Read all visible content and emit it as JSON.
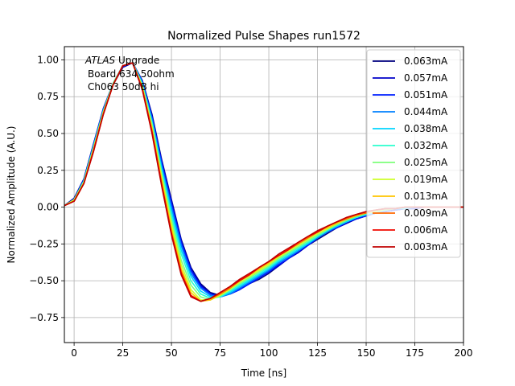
{
  "chart_data": {
    "type": "line",
    "title": "Normalized Pulse Shapes run1572",
    "xlabel": "Time [ns]",
    "ylabel": "Normalized Amplitude (A.U.)",
    "xlim": [
      -5,
      200
    ],
    "ylim": [
      -0.92,
      1.09
    ],
    "xticks": [
      0,
      25,
      50,
      75,
      100,
      125,
      150,
      175,
      200
    ],
    "yticks": [
      -0.75,
      -0.5,
      -0.25,
      0.0,
      0.25,
      0.5,
      0.75,
      1.0
    ],
    "xtick_labels": [
      "0",
      "25",
      "50",
      "75",
      "100",
      "125",
      "150",
      "175",
      "200"
    ],
    "ytick_labels": [
      "−0.75",
      "−0.50",
      "−0.25",
      "0.00",
      "0.25",
      "0.50",
      "0.75",
      "1.00"
    ],
    "grid": true,
    "legend_position": "top-right",
    "annotation": {
      "line1_italic": "ATLAS",
      "line1_rest": " Upgrade",
      "line2": "Board 634 50ohm",
      "line3": "Ch063 50dB hi"
    },
    "series": [
      {
        "name": "0.063mA",
        "color": "#00007f",
        "y": [
          0.01,
          0.06,
          0.19,
          0.43,
          0.66,
          0.83,
          0.95,
          0.98,
          0.86,
          0.63,
          0.32,
          0.05,
          -0.22,
          -0.41,
          -0.52,
          -0.58,
          -0.6,
          -0.59,
          -0.56,
          -0.52,
          -0.49,
          -0.45,
          -0.4,
          -0.35,
          -0.31,
          -0.26,
          -0.22,
          -0.18,
          -0.14,
          -0.11,
          -0.08,
          -0.06,
          -0.04,
          -0.03,
          -0.02,
          -0.01,
          -0.01,
          0.0,
          0.0,
          0.0,
          0.0,
          0.0
        ]
      },
      {
        "name": "0.057mA",
        "color": "#0000c8",
        "y": [
          0.01,
          0.06,
          0.19,
          0.43,
          0.67,
          0.84,
          0.95,
          0.98,
          0.86,
          0.62,
          0.31,
          0.04,
          -0.23,
          -0.42,
          -0.53,
          -0.59,
          -0.6,
          -0.59,
          -0.56,
          -0.52,
          -0.48,
          -0.44,
          -0.4,
          -0.35,
          -0.31,
          -0.26,
          -0.21,
          -0.17,
          -0.14,
          -0.11,
          -0.08,
          -0.06,
          -0.04,
          -0.03,
          -0.02,
          -0.01,
          -0.01,
          0.0,
          0.0,
          0.0,
          0.0,
          0.0
        ]
      },
      {
        "name": "0.051mA",
        "color": "#0020ff",
        "y": [
          0.01,
          0.05,
          0.18,
          0.42,
          0.66,
          0.84,
          0.96,
          0.98,
          0.85,
          0.61,
          0.3,
          0.02,
          -0.24,
          -0.43,
          -0.54,
          -0.59,
          -0.61,
          -0.59,
          -0.56,
          -0.52,
          -0.48,
          -0.44,
          -0.39,
          -0.35,
          -0.3,
          -0.26,
          -0.21,
          -0.17,
          -0.14,
          -0.1,
          -0.08,
          -0.06,
          -0.04,
          -0.03,
          -0.02,
          -0.01,
          -0.01,
          0.0,
          0.0,
          0.0,
          0.0,
          0.0
        ]
      },
      {
        "name": "0.044mA",
        "color": "#0080ff",
        "y": [
          0.01,
          0.05,
          0.18,
          0.42,
          0.66,
          0.84,
          0.96,
          0.98,
          0.85,
          0.6,
          0.28,
          0.0,
          -0.26,
          -0.45,
          -0.55,
          -0.6,
          -0.61,
          -0.59,
          -0.55,
          -0.51,
          -0.47,
          -0.43,
          -0.38,
          -0.34,
          -0.3,
          -0.25,
          -0.21,
          -0.17,
          -0.13,
          -0.1,
          -0.07,
          -0.05,
          -0.04,
          -0.02,
          -0.01,
          -0.01,
          0.0,
          0.0,
          0.0,
          0.0,
          0.0,
          0.0
        ]
      },
      {
        "name": "0.038mA",
        "color": "#00d4ff",
        "y": [
          0.01,
          0.05,
          0.18,
          0.41,
          0.65,
          0.84,
          0.96,
          0.98,
          0.84,
          0.58,
          0.26,
          -0.03,
          -0.29,
          -0.47,
          -0.57,
          -0.61,
          -0.61,
          -0.58,
          -0.54,
          -0.5,
          -0.46,
          -0.42,
          -0.37,
          -0.33,
          -0.29,
          -0.25,
          -0.2,
          -0.16,
          -0.13,
          -0.1,
          -0.07,
          -0.05,
          -0.03,
          -0.02,
          -0.01,
          -0.01,
          0.0,
          0.0,
          0.0,
          0.0,
          0.0,
          0.0
        ]
      },
      {
        "name": "0.032mA",
        "color": "#29ffce",
        "y": [
          0.01,
          0.05,
          0.17,
          0.41,
          0.65,
          0.84,
          0.96,
          0.98,
          0.83,
          0.57,
          0.24,
          -0.06,
          -0.32,
          -0.5,
          -0.59,
          -0.62,
          -0.61,
          -0.57,
          -0.53,
          -0.49,
          -0.45,
          -0.41,
          -0.36,
          -0.32,
          -0.28,
          -0.24,
          -0.2,
          -0.16,
          -0.12,
          -0.09,
          -0.07,
          -0.05,
          -0.03,
          -0.02,
          -0.01,
          0.0,
          0.0,
          0.0,
          0.0,
          0.0,
          0.0,
          0.0
        ]
      },
      {
        "name": "0.025mA",
        "color": "#7dff7a",
        "y": [
          0.01,
          0.05,
          0.17,
          0.4,
          0.65,
          0.84,
          0.96,
          0.98,
          0.83,
          0.56,
          0.22,
          -0.09,
          -0.36,
          -0.53,
          -0.61,
          -0.63,
          -0.6,
          -0.56,
          -0.52,
          -0.48,
          -0.44,
          -0.4,
          -0.35,
          -0.31,
          -0.27,
          -0.23,
          -0.19,
          -0.15,
          -0.12,
          -0.09,
          -0.06,
          -0.04,
          -0.03,
          -0.02,
          -0.01,
          0.0,
          0.0,
          0.0,
          0.0,
          0.0,
          0.0,
          0.0
        ]
      },
      {
        "name": "0.019mA",
        "color": "#ceff29",
        "y": [
          0.01,
          0.05,
          0.17,
          0.4,
          0.64,
          0.83,
          0.96,
          0.98,
          0.82,
          0.54,
          0.2,
          -0.12,
          -0.39,
          -0.56,
          -0.63,
          -0.63,
          -0.6,
          -0.56,
          -0.51,
          -0.47,
          -0.43,
          -0.39,
          -0.34,
          -0.3,
          -0.26,
          -0.22,
          -0.18,
          -0.15,
          -0.11,
          -0.08,
          -0.06,
          -0.04,
          -0.03,
          -0.01,
          -0.01,
          0.0,
          0.0,
          0.0,
          0.0,
          0.0,
          0.0,
          0.0
        ]
      },
      {
        "name": "0.013mA",
        "color": "#ffc400",
        "y": [
          0.01,
          0.04,
          0.16,
          0.39,
          0.64,
          0.83,
          0.96,
          0.98,
          0.81,
          0.53,
          0.18,
          -0.15,
          -0.42,
          -0.58,
          -0.64,
          -0.63,
          -0.59,
          -0.55,
          -0.5,
          -0.46,
          -0.42,
          -0.38,
          -0.33,
          -0.29,
          -0.25,
          -0.21,
          -0.17,
          -0.14,
          -0.11,
          -0.08,
          -0.06,
          -0.04,
          -0.02,
          -0.01,
          -0.01,
          0.0,
          0.0,
          0.0,
          0.0,
          0.0,
          0.0,
          0.0
        ]
      },
      {
        "name": "0.009mA",
        "color": "#ff6800",
        "y": [
          0.01,
          0.04,
          0.16,
          0.39,
          0.63,
          0.83,
          0.96,
          0.98,
          0.81,
          0.52,
          0.16,
          -0.17,
          -0.44,
          -0.6,
          -0.64,
          -0.62,
          -0.59,
          -0.55,
          -0.5,
          -0.46,
          -0.41,
          -0.37,
          -0.33,
          -0.29,
          -0.25,
          -0.21,
          -0.17,
          -0.13,
          -0.1,
          -0.08,
          -0.05,
          -0.04,
          -0.02,
          -0.01,
          -0.01,
          0.0,
          0.0,
          0.0,
          0.0,
          0.0,
          0.0,
          0.0
        ]
      },
      {
        "name": "0.006mA",
        "color": "#f10800",
        "y": [
          0.01,
          0.04,
          0.16,
          0.38,
          0.63,
          0.83,
          0.96,
          0.98,
          0.8,
          0.51,
          0.15,
          -0.18,
          -0.45,
          -0.6,
          -0.64,
          -0.62,
          -0.58,
          -0.54,
          -0.5,
          -0.46,
          -0.41,
          -0.37,
          -0.33,
          -0.29,
          -0.24,
          -0.2,
          -0.17,
          -0.13,
          -0.1,
          -0.07,
          -0.05,
          -0.03,
          -0.02,
          -0.01,
          -0.01,
          0.0,
          0.0,
          0.0,
          0.0,
          0.0,
          0.0,
          0.0
        ]
      },
      {
        "name": "0.003mA",
        "color": "#c00000",
        "y": [
          0.01,
          0.04,
          0.16,
          0.38,
          0.63,
          0.83,
          0.96,
          0.98,
          0.8,
          0.5,
          0.14,
          -0.19,
          -0.46,
          -0.61,
          -0.64,
          -0.62,
          -0.58,
          -0.54,
          -0.49,
          -0.45,
          -0.41,
          -0.37,
          -0.32,
          -0.28,
          -0.24,
          -0.2,
          -0.16,
          -0.13,
          -0.1,
          -0.07,
          -0.05,
          -0.03,
          -0.02,
          -0.01,
          -0.01,
          0.0,
          0.0,
          0.0,
          0.0,
          0.0,
          0.0,
          0.0
        ]
      }
    ]
  }
}
